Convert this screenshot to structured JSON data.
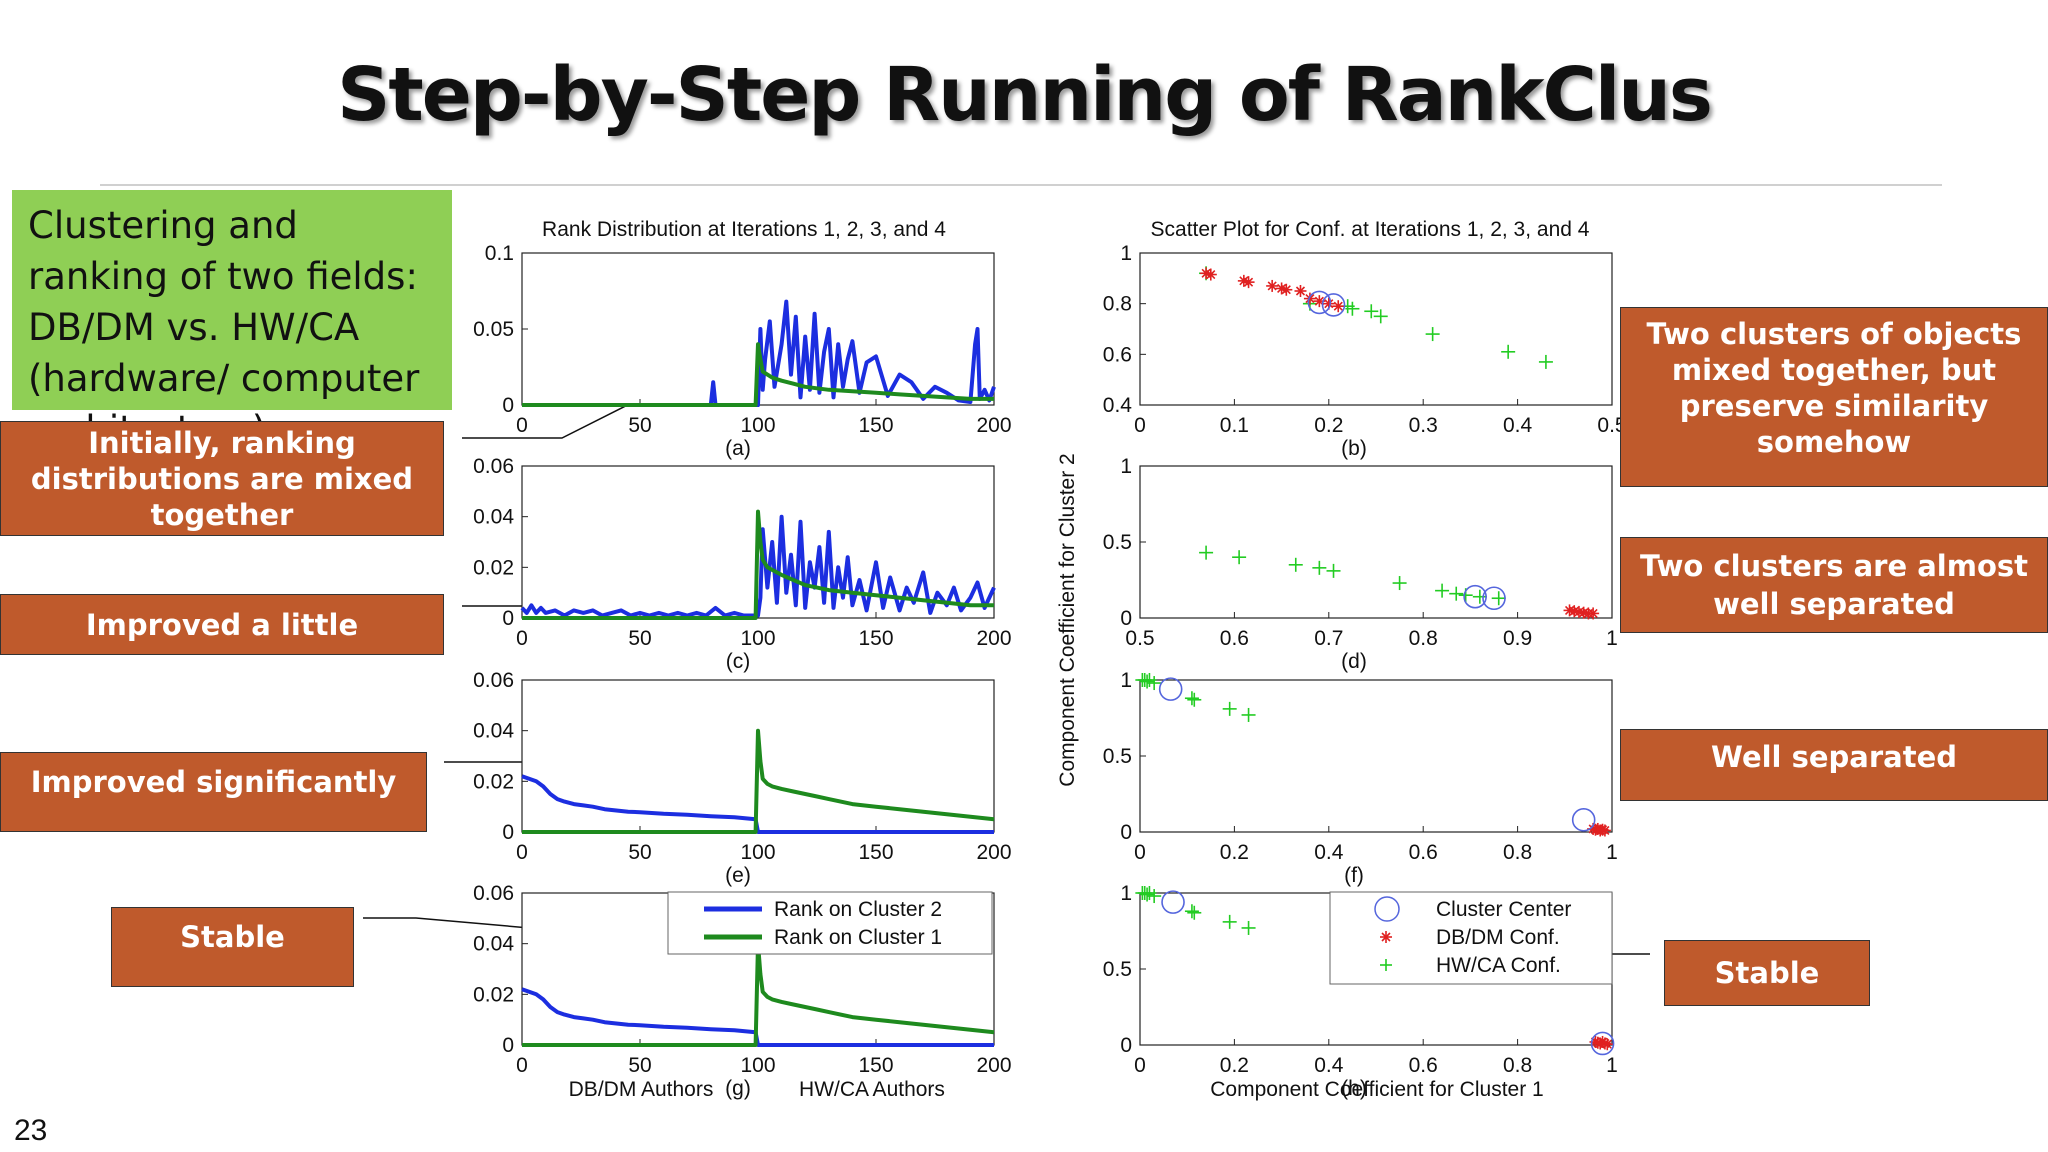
{
  "slide": {
    "title": "Step-by-Step Running of RankClus",
    "green_text": "Clustering and ranking of two fields: DB/DM vs. HW/CA (hardware/ computer architecture)",
    "page_number": "23",
    "callouts": {
      "initially": "Initially, ranking distributions are mixed together",
      "improved_little": "Improved a little",
      "improved_significantly": "Improved significantly",
      "stable_left": "Stable",
      "mixed": "Two clusters of objects mixed together, but preserve similarity somehow",
      "almost": "Two clusters are almost well separated",
      "well": "Well separated",
      "stable_right": "Stable"
    },
    "colors": {
      "orange": "#bf5a2c",
      "green_box": "#8fcf55",
      "cluster2": "#1c2ee0",
      "cluster1": "#1e8a1e",
      "dbdm": "#e02020",
      "hwca": "#22cc22",
      "center": "#5566dd"
    }
  },
  "chart_data": [
    {
      "type": "line",
      "panel": "(a)",
      "title": "Rank Distribution at Iterations 1, 2, 3, and 4",
      "xlim": [
        0,
        200
      ],
      "ylim": [
        0,
        0.1
      ],
      "xticks": [
        "0",
        "50",
        "100",
        "150",
        "200"
      ],
      "yticks": [
        "0",
        "0.05",
        "0.1"
      ],
      "series": [
        {
          "name": "Rank on Cluster 2",
          "color": "#1c2ee0",
          "x": [
            0,
            80,
            81,
            82,
            83,
            84,
            100,
            101,
            102,
            103,
            105,
            107,
            110,
            112,
            114,
            116,
            118,
            120,
            122,
            124,
            126,
            128,
            130,
            132,
            134,
            136,
            138,
            140,
            143,
            146,
            150,
            155,
            160,
            165,
            170,
            175,
            180,
            185,
            190,
            192,
            193,
            194,
            196,
            198,
            200
          ],
          "y": [
            0,
            0,
            0.015,
            0,
            0,
            0,
            0,
            0.05,
            0.01,
            0.03,
            0.055,
            0.012,
            0.04,
            0.068,
            0.02,
            0.058,
            0.005,
            0.045,
            0.01,
            0.06,
            0.008,
            0.035,
            0.05,
            0.005,
            0.04,
            0.012,
            0.03,
            0.042,
            0.008,
            0.028,
            0.032,
            0.006,
            0.02,
            0.015,
            0.004,
            0.012,
            0.008,
            0.003,
            0.002,
            0.04,
            0.05,
            0.004,
            0.01,
            0.003,
            0.012
          ]
        },
        {
          "name": "Rank on Cluster 1",
          "color": "#1e8a1e",
          "x": [
            0,
            99,
            100,
            101,
            102,
            104,
            106,
            110,
            115,
            120,
            125,
            130,
            140,
            150,
            160,
            170,
            180,
            190,
            200
          ],
          "y": [
            0,
            0,
            0.04,
            0.03,
            0.022,
            0.02,
            0.018,
            0.016,
            0.014,
            0.012,
            0.011,
            0.01,
            0.009,
            0.008,
            0.007,
            0.006,
            0.005,
            0.004,
            0.004
          ]
        }
      ]
    },
    {
      "type": "line",
      "panel": "(c)",
      "xlim": [
        0,
        200
      ],
      "ylim": [
        0,
        0.06
      ],
      "xticks": [
        "0",
        "50",
        "100",
        "150",
        "200"
      ],
      "yticks": [
        "0",
        "0.02",
        "0.04",
        "0.06"
      ],
      "series": [
        {
          "name": "Rank on Cluster 2",
          "color": "#1c2ee0",
          "x": [
            0,
            2,
            4,
            6,
            8,
            10,
            14,
            18,
            22,
            26,
            30,
            34,
            38,
            42,
            46,
            50,
            54,
            58,
            62,
            66,
            70,
            74,
            78,
            82,
            86,
            90,
            94,
            98,
            100,
            101,
            102,
            104,
            106,
            108,
            110,
            112,
            114,
            116,
            118,
            120,
            122,
            124,
            126,
            128,
            130,
            132,
            134,
            136,
            138,
            140,
            143,
            146,
            150,
            153,
            156,
            160,
            163,
            166,
            170,
            173,
            176,
            180,
            183,
            186,
            190,
            193,
            196,
            200
          ],
          "y": [
            0.004,
            0.002,
            0.005,
            0.002,
            0.004,
            0.002,
            0.003,
            0.001,
            0.003,
            0.002,
            0.003,
            0.001,
            0.002,
            0.003,
            0.001,
            0.002,
            0.001,
            0.002,
            0.001,
            0.002,
            0.001,
            0.002,
            0.001,
            0.004,
            0.001,
            0.002,
            0.001,
            0.001,
            0.001,
            0.008,
            0.035,
            0.012,
            0.03,
            0.006,
            0.04,
            0.01,
            0.025,
            0.005,
            0.038,
            0.004,
            0.022,
            0.012,
            0.028,
            0.006,
            0.034,
            0.004,
            0.02,
            0.008,
            0.024,
            0.005,
            0.015,
            0.003,
            0.022,
            0.004,
            0.016,
            0.003,
            0.012,
            0.006,
            0.018,
            0.002,
            0.01,
            0.005,
            0.012,
            0.003,
            0.008,
            0.014,
            0.004,
            0.012
          ]
        },
        {
          "name": "Rank on Cluster 1",
          "color": "#1e8a1e",
          "x": [
            0,
            99,
            100,
            101,
            102,
            104,
            106,
            110,
            115,
            120,
            125,
            130,
            140,
            150,
            160,
            170,
            180,
            190,
            200
          ],
          "y": [
            0,
            0,
            0.042,
            0.03,
            0.023,
            0.02,
            0.019,
            0.017,
            0.015,
            0.013,
            0.012,
            0.011,
            0.01,
            0.009,
            0.008,
            0.007,
            0.006,
            0.005,
            0.005
          ]
        }
      ]
    },
    {
      "type": "line",
      "panel": "(e)",
      "xlim": [
        0,
        200
      ],
      "ylim": [
        0,
        0.06
      ],
      "xticks": [
        "0",
        "50",
        "100",
        "150",
        "200"
      ],
      "yticks": [
        "0",
        "0.02",
        "0.04",
        "0.06"
      ],
      "series": [
        {
          "name": "Rank on Cluster 2",
          "color": "#1c2ee0",
          "x": [
            0,
            3,
            6,
            9,
            12,
            15,
            18,
            22,
            26,
            30,
            35,
            40,
            45,
            50,
            60,
            70,
            80,
            90,
            99,
            100,
            200
          ],
          "y": [
            0.022,
            0.021,
            0.02,
            0.018,
            0.015,
            0.013,
            0.012,
            0.011,
            0.0105,
            0.01,
            0.009,
            0.0085,
            0.008,
            0.0078,
            0.0072,
            0.0068,
            0.0062,
            0.0058,
            0.005,
            0,
            0
          ]
        },
        {
          "name": "Rank on Cluster 1",
          "color": "#1e8a1e",
          "x": [
            0,
            99,
            100,
            101,
            102,
            104,
            106,
            110,
            115,
            120,
            125,
            130,
            140,
            150,
            160,
            170,
            180,
            190,
            200
          ],
          "y": [
            0,
            0,
            0.04,
            0.028,
            0.021,
            0.019,
            0.018,
            0.017,
            0.016,
            0.015,
            0.014,
            0.013,
            0.011,
            0.01,
            0.009,
            0.008,
            0.007,
            0.006,
            0.005
          ]
        }
      ]
    },
    {
      "type": "line",
      "panel": "(g)",
      "xlim": [
        0,
        200
      ],
      "ylim": [
        0,
        0.06
      ],
      "xticks": [
        "0",
        "50",
        "100",
        "150",
        "200"
      ],
      "yticks": [
        "0",
        "0.02",
        "0.04",
        "0.06"
      ],
      "xlabel_left": "DB/DM Authors",
      "xlabel_right": "HW/CA Authors",
      "legend": {
        "placement": "top-right",
        "entries": [
          "Rank on Cluster 2",
          "Rank on Cluster 1"
        ]
      },
      "series": [
        {
          "name": "Rank on Cluster 2",
          "color": "#1c2ee0",
          "x": [
            0,
            3,
            6,
            9,
            12,
            15,
            18,
            22,
            26,
            30,
            35,
            40,
            45,
            50,
            60,
            70,
            80,
            90,
            99,
            100,
            200
          ],
          "y": [
            0.022,
            0.021,
            0.02,
            0.018,
            0.015,
            0.013,
            0.012,
            0.011,
            0.0105,
            0.01,
            0.009,
            0.0085,
            0.008,
            0.0078,
            0.0072,
            0.0068,
            0.0062,
            0.0058,
            0.005,
            0,
            0
          ]
        },
        {
          "name": "Rank on Cluster 1",
          "color": "#1e8a1e",
          "x": [
            0,
            99,
            100,
            101,
            102,
            104,
            106,
            110,
            115,
            120,
            125,
            130,
            140,
            150,
            160,
            170,
            180,
            190,
            200
          ],
          "y": [
            0,
            0,
            0.04,
            0.028,
            0.021,
            0.019,
            0.018,
            0.017,
            0.016,
            0.015,
            0.014,
            0.013,
            0.011,
            0.01,
            0.009,
            0.008,
            0.007,
            0.006,
            0.005
          ]
        }
      ]
    },
    {
      "type": "scatter",
      "panel": "(b)",
      "title": "Scatter Plot for Conf. at Iterations 1, 2, 3, and 4",
      "xlim": [
        0,
        0.5
      ],
      "ylim": [
        0.4,
        1
      ],
      "xticks": [
        "0",
        "0.1",
        "0.2",
        "0.3",
        "0.4",
        "0.5"
      ],
      "yticks": [
        "0.4",
        "0.6",
        "0.8",
        "1"
      ],
      "centers": [
        [
          0.19,
          0.805
        ],
        [
          0.205,
          0.795
        ]
      ],
      "dbdm": [
        [
          0.07,
          0.92
        ],
        [
          0.075,
          0.915
        ],
        [
          0.11,
          0.89
        ],
        [
          0.115,
          0.885
        ],
        [
          0.14,
          0.87
        ],
        [
          0.15,
          0.86
        ],
        [
          0.155,
          0.855
        ],
        [
          0.17,
          0.85
        ],
        [
          0.18,
          0.82
        ],
        [
          0.19,
          0.81
        ],
        [
          0.2,
          0.8
        ],
        [
          0.21,
          0.79
        ]
      ],
      "hwca": [
        [
          0.07,
          0.92
        ],
        [
          0.18,
          0.8
        ],
        [
          0.22,
          0.79
        ],
        [
          0.225,
          0.78
        ],
        [
          0.245,
          0.77
        ],
        [
          0.255,
          0.75
        ],
        [
          0.31,
          0.68
        ],
        [
          0.39,
          0.61
        ],
        [
          0.43,
          0.57
        ]
      ]
    },
    {
      "type": "scatter",
      "panel": "(d)",
      "xlim": [
        0.5,
        1
      ],
      "ylim": [
        0,
        1
      ],
      "xticks": [
        "0.5",
        "0.6",
        "0.7",
        "0.8",
        "0.9",
        "1"
      ],
      "yticks": [
        "0",
        "0.5",
        "1"
      ],
      "ylabel": "Component Coefficient for Cluster 2",
      "centers": [
        [
          0.855,
          0.14
        ],
        [
          0.875,
          0.13
        ]
      ],
      "dbdm": [
        [
          0.955,
          0.05
        ],
        [
          0.96,
          0.045
        ],
        [
          0.965,
          0.04
        ],
        [
          0.97,
          0.035
        ],
        [
          0.975,
          0.03
        ],
        [
          0.98,
          0.03
        ]
      ],
      "hwca": [
        [
          0.57,
          0.43
        ],
        [
          0.605,
          0.4
        ],
        [
          0.665,
          0.35
        ],
        [
          0.69,
          0.33
        ],
        [
          0.705,
          0.31
        ],
        [
          0.775,
          0.23
        ],
        [
          0.82,
          0.18
        ],
        [
          0.835,
          0.16
        ],
        [
          0.845,
          0.15
        ],
        [
          0.86,
          0.14
        ],
        [
          0.88,
          0.13
        ]
      ]
    },
    {
      "type": "scatter",
      "panel": "(f)",
      "xlim": [
        0,
        1
      ],
      "ylim": [
        0,
        1
      ],
      "xticks": [
        "0",
        "0.2",
        "0.4",
        "0.6",
        "0.8",
        "1"
      ],
      "yticks": [
        "0",
        "0.5",
        "1"
      ],
      "centers": [
        [
          0.065,
          0.94
        ],
        [
          0.94,
          0.08
        ]
      ],
      "dbdm": [
        [
          0.96,
          0.02
        ],
        [
          0.965,
          0.015
        ],
        [
          0.97,
          0.02
        ],
        [
          0.975,
          0.01
        ],
        [
          0.98,
          0.015
        ],
        [
          0.985,
          0.01
        ]
      ],
      "hwca": [
        [
          0.005,
          1
        ],
        [
          0.01,
          1
        ],
        [
          0.015,
          0.99
        ],
        [
          0.02,
          1
        ],
        [
          0.03,
          0.98
        ],
        [
          0.11,
          0.88
        ],
        [
          0.115,
          0.87
        ],
        [
          0.19,
          0.81
        ],
        [
          0.23,
          0.77
        ]
      ]
    },
    {
      "type": "scatter",
      "panel": "(h)",
      "xlim": [
        0,
        1
      ],
      "ylim": [
        0,
        1
      ],
      "xticks": [
        "0",
        "0.2",
        "0.4",
        "0.6",
        "0.8",
        "1"
      ],
      "yticks": [
        "0",
        "0.5",
        "1"
      ],
      "xlabel": "Component Coefficient for Cluster 1",
      "legend": {
        "placement": "top-right",
        "entries": [
          "Cluster Center",
          "DB/DM Conf.",
          "HW/CA Conf."
        ]
      },
      "centers": [
        [
          0.07,
          0.94
        ],
        [
          0.98,
          0.01
        ]
      ],
      "dbdm": [
        [
          0.965,
          0.02
        ],
        [
          0.97,
          0.015
        ],
        [
          0.975,
          0.01
        ],
        [
          0.98,
          0.02
        ],
        [
          0.985,
          0.01
        ],
        [
          0.99,
          0.005
        ]
      ],
      "hwca": [
        [
          0.005,
          1
        ],
        [
          0.01,
          1
        ],
        [
          0.015,
          0.99
        ],
        [
          0.02,
          1
        ],
        [
          0.03,
          0.98
        ],
        [
          0.11,
          0.88
        ],
        [
          0.115,
          0.87
        ],
        [
          0.19,
          0.81
        ],
        [
          0.23,
          0.77
        ]
      ]
    }
  ]
}
